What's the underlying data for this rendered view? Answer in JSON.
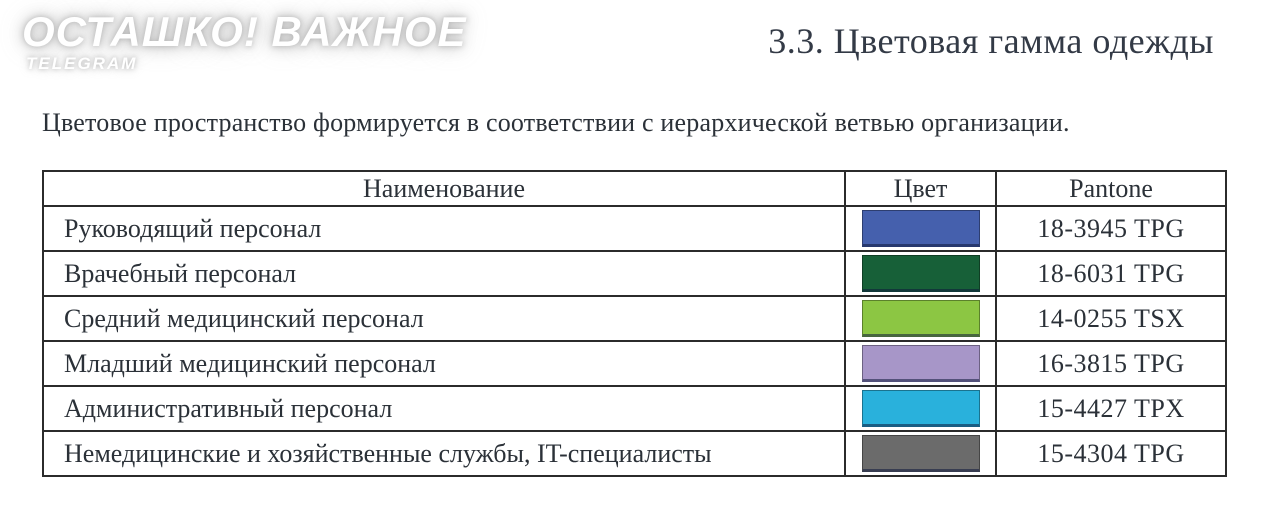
{
  "watermark": {
    "line1": "ОСТАШКО! ВАЖНОЕ",
    "line2": "TELEGRAM"
  },
  "header": {
    "title": "3.3. Цветовая гамма одежды"
  },
  "intro": "Цветовое пространство формируется в соответствии с иерархической ветвью организации.",
  "table": {
    "columns": {
      "name": "Наименование",
      "color": "Цвет",
      "pantone": "Pantone"
    },
    "rows": [
      {
        "name": "Руководящий персонал",
        "color": "#4560ad",
        "pantone": "18-3945 TPG"
      },
      {
        "name": "Врачебный персонал",
        "color": "#176038",
        "pantone": "18-6031 TPG"
      },
      {
        "name": "Средний медицинский персонал",
        "color": "#8cc643",
        "pantone": "14-0255 TSX"
      },
      {
        "name": "Младший медицинский персонал",
        "color": "#a796c8",
        "pantone": "16-3815 TPG"
      },
      {
        "name": "Административный персонал",
        "color": "#29b1dc",
        "pantone": "15-4427 TPX"
      },
      {
        "name": "Немедицинские и хозяйственные службы, IT-специалисты",
        "color": "#6b6b6b",
        "pantone": "15-4304 TPG"
      }
    ]
  }
}
